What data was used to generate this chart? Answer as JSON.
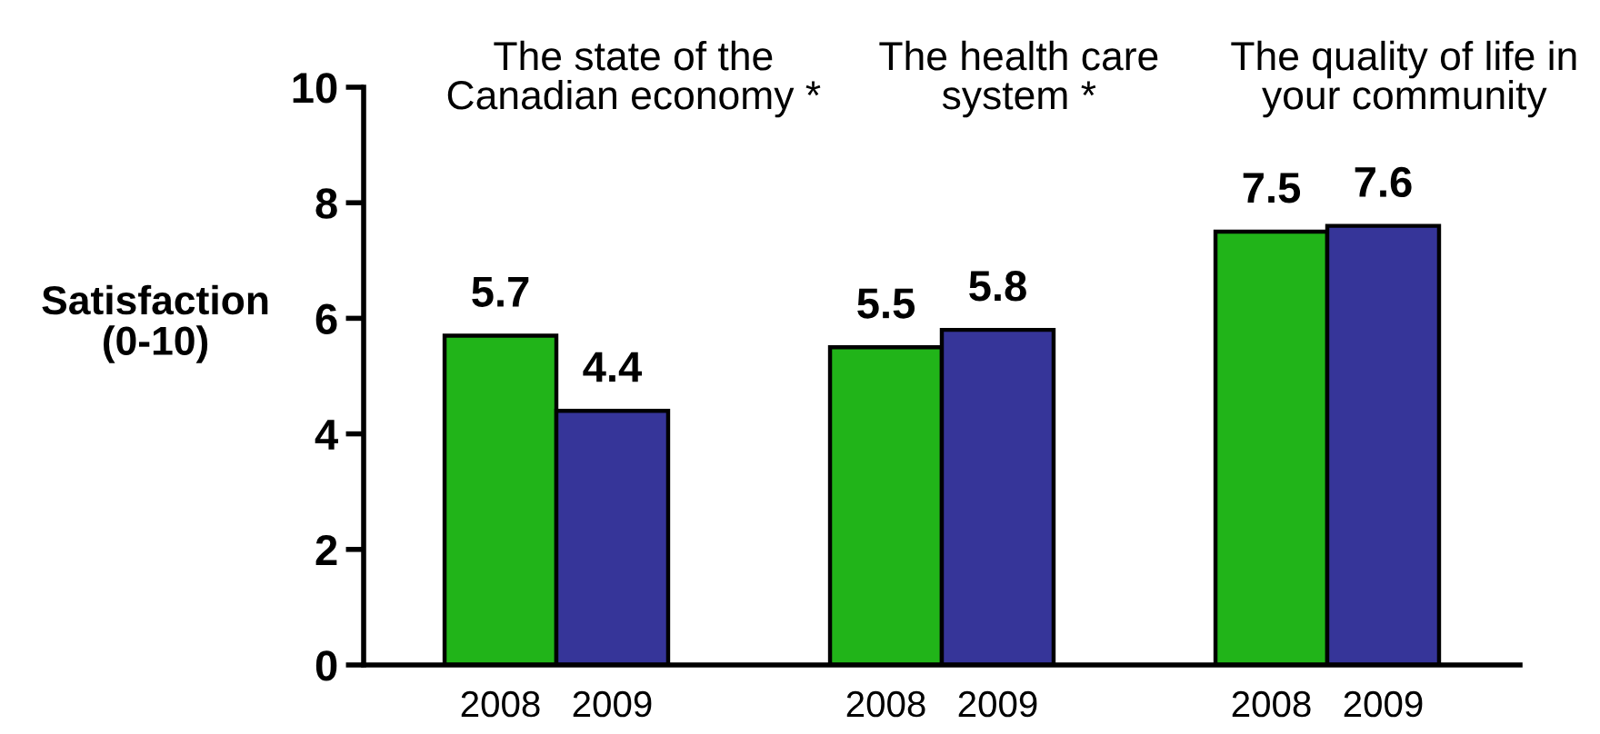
{
  "chart_data": {
    "type": "bar",
    "ylabel": "Satisfaction\n(0-10)",
    "categories": [
      "The state of the\nCanadian economy *",
      "The health care\nsystem *",
      "The quality of life in\nyour community"
    ],
    "series": [
      {
        "name": "2008",
        "color": "#21b419",
        "values": [
          5.7,
          5.5,
          7.5
        ]
      },
      {
        "name": "2009",
        "color": "#363599",
        "values": [
          4.4,
          5.8,
          7.6
        ]
      }
    ],
    "ylim": [
      0,
      10
    ],
    "yticks": [
      0,
      2,
      4,
      6,
      8,
      10
    ],
    "data_labels": true,
    "grid": false,
    "legend": false
  }
}
